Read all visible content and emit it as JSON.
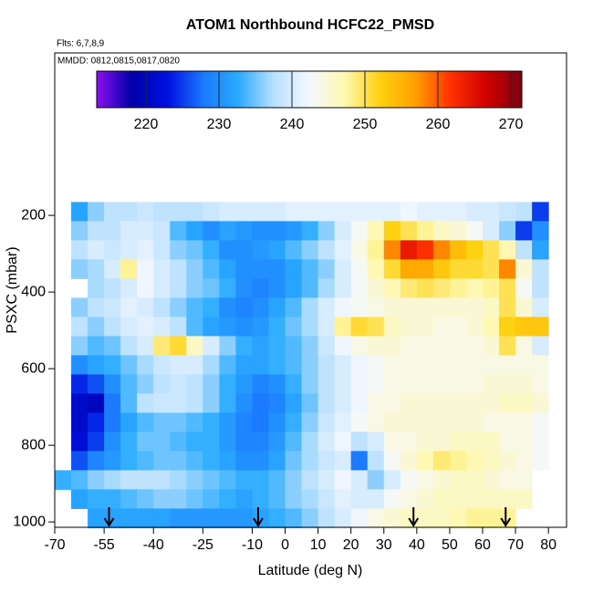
{
  "chart_data": {
    "type": "heatmap",
    "title": "ATOM1 Northbound HCFC22_PMSD",
    "subtitle": "Flts: 6,7,8,9",
    "annotation": "MMDD: 0812,0815,0817,0820",
    "xlabel": "Latitude (deg N)",
    "ylabel": "PSXC (mbar)",
    "xlim": [
      -70,
      85.5
    ],
    "ylim": [
      1014,
      -224
    ],
    "xticks": [
      -70,
      -55,
      -40,
      -25,
      -10,
      0,
      10,
      20,
      30,
      40,
      50,
      60,
      70,
      80
    ],
    "yticks": [
      200,
      400,
      600,
      800,
      1000
    ],
    "xbins": [
      -70,
      -65,
      -60,
      -55,
      -50,
      -45,
      -40,
      -35,
      -30,
      -25,
      -20,
      -15,
      -10,
      -5,
      0,
      5,
      10,
      15,
      20,
      25,
      30,
      35,
      40,
      45,
      50,
      55,
      60,
      65,
      70,
      75,
      80
    ],
    "ybins": [
      165,
      215,
      265,
      315,
      365,
      415,
      465,
      515,
      565,
      615,
      665,
      715,
      765,
      815,
      865,
      915,
      965,
      1015
    ],
    "z": [
      [
        null,
        232,
        236,
        238,
        238,
        239,
        238,
        238,
        238,
        239,
        240,
        240,
        240,
        240,
        241,
        241,
        241,
        241,
        241,
        241,
        241,
        242,
        241,
        241,
        241,
        240,
        240,
        239,
        238,
        225
      ],
      [
        null,
        236,
        238,
        238,
        240,
        240,
        239,
        234,
        232,
        230,
        232,
        231,
        230,
        230,
        231,
        233,
        236,
        240,
        243,
        247,
        252,
        250,
        248,
        246,
        245,
        243,
        240,
        236,
        225,
        230
      ],
      [
        null,
        238,
        240,
        239,
        240,
        241,
        239,
        236,
        235,
        233,
        230,
        230,
        231,
        232,
        234,
        236,
        238,
        241,
        244,
        248,
        258,
        264,
        262,
        258,
        254,
        252,
        250,
        247,
        238,
        232
      ],
      [
        null,
        236,
        237,
        240,
        248,
        242,
        240,
        238,
        236,
        234,
        232,
        230,
        230,
        230,
        232,
        234,
        236,
        240,
        243,
        247,
        251,
        256,
        256,
        253,
        251,
        251,
        250,
        258,
        245,
        238
      ],
      [
        null,
        null,
        237,
        238,
        240,
        242,
        240,
        238,
        236,
        235,
        233,
        230,
        229,
        230,
        232,
        234,
        237,
        240,
        243,
        245,
        247,
        249,
        250,
        249,
        248,
        247,
        248,
        250,
        243,
        238
      ],
      [
        null,
        236,
        238,
        239,
        241,
        240,
        238,
        236,
        234,
        233,
        230,
        229,
        230,
        232,
        234,
        237,
        240,
        242,
        243,
        244,
        245,
        245,
        245,
        245,
        245,
        245,
        246,
        250,
        245,
        240
      ],
      [
        null,
        238,
        236,
        238,
        240,
        241,
        240,
        238,
        234,
        232,
        231,
        230,
        231,
        233,
        235,
        237,
        240,
        248,
        251,
        250,
        246,
        245,
        245,
        244,
        244,
        245,
        247,
        252,
        253,
        253
      ],
      [
        null,
        236,
        234,
        235,
        238,
        240,
        249,
        251,
        246,
        240,
        236,
        233,
        232,
        233,
        234,
        236,
        239,
        242,
        244,
        245,
        245,
        244,
        244,
        244,
        244,
        244,
        245,
        250,
        244,
        240
      ],
      [
        null,
        230,
        232,
        233,
        235,
        237,
        239,
        240,
        240,
        237,
        234,
        232,
        232,
        233,
        234,
        236,
        238,
        240,
        242,
        243,
        244,
        244,
        244,
        244,
        244,
        244,
        244,
        244,
        244,
        244
      ],
      [
        null,
        224,
        226,
        230,
        234,
        236,
        238,
        239,
        238,
        236,
        233,
        231,
        229,
        230,
        233,
        236,
        238,
        240,
        242,
        243,
        244,
        244,
        244,
        244,
        244,
        244,
        245,
        245,
        245,
        244
      ],
      [
        null,
        221,
        220,
        228,
        234,
        238,
        239,
        239,
        238,
        236,
        233,
        230,
        228,
        229,
        232,
        235,
        238,
        240,
        242,
        244,
        244,
        245,
        245,
        245,
        245,
        245,
        245,
        246,
        246,
        245
      ],
      [
        null,
        221,
        224,
        228,
        232,
        234,
        235,
        235,
        234,
        233,
        231,
        229,
        228,
        230,
        233,
        236,
        239,
        241,
        243,
        244,
        245,
        245,
        245,
        245,
        245,
        245,
        244,
        244,
        244,
        243
      ],
      [
        null,
        222,
        225,
        230,
        233,
        235,
        235,
        234,
        233,
        233,
        231,
        229,
        229,
        231,
        234,
        237,
        240,
        242,
        238,
        240,
        244,
        244,
        245,
        245,
        246,
        246,
        246,
        244,
        244,
        243
      ],
      [
        null,
        226,
        229,
        231,
        233,
        234,
        235,
        235,
        234,
        233,
        232,
        230,
        230,
        232,
        235,
        237,
        239,
        240,
        228,
        238,
        243,
        245,
        247,
        249,
        248,
        247,
        246,
        245,
        244,
        243
      ],
      [
        233,
        234,
        236,
        237,
        238,
        238,
        238,
        237,
        236,
        235,
        234,
        233,
        233,
        234,
        236,
        238,
        240,
        242,
        240,
        236,
        240,
        243,
        244,
        245,
        246,
        246,
        245,
        244,
        244,
        null
      ],
      [
        null,
        232,
        233,
        233,
        234,
        235,
        236,
        236,
        235,
        234,
        233,
        232,
        233,
        234,
        236,
        237,
        239,
        241,
        240,
        240,
        243,
        244,
        245,
        246,
        246,
        246,
        246,
        246,
        246,
        null
      ],
      [
        null,
        null,
        232,
        232,
        232,
        232,
        232,
        231,
        231,
        231,
        231,
        231,
        232,
        233,
        234,
        236,
        238,
        240,
        242,
        244,
        245,
        246,
        246,
        246,
        247,
        248,
        248,
        248,
        null,
        null
      ]
    ],
    "zlim": [
      213.25,
      271.5
    ],
    "zticks": [
      220,
      230,
      240,
      250,
      260,
      270
    ],
    "colors": [
      "#8a10f0",
      "#0000a8",
      "#0010e0",
      "#1a78ff",
      "#2aaaff",
      "#b8e0ff",
      "#f4f8ff",
      "#fff8b0",
      "#ffd010",
      "#ffa000",
      "#ff3000",
      "#d00000",
      "#800010"
    ],
    "arrows": [
      -53.5,
      -8.2,
      39,
      67
    ]
  }
}
